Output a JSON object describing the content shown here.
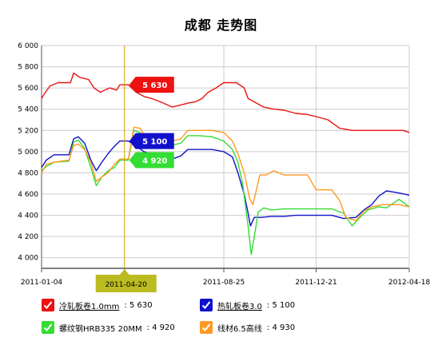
{
  "chart_data": {
    "type": "line",
    "title": "成都 走势图",
    "ylim": [
      3900,
      6000
    ],
    "y_ticks": [
      4000,
      4200,
      4400,
      4600,
      4800,
      5000,
      5200,
      5400,
      5600,
      5800,
      6000
    ],
    "y_tick_labels": [
      "4 000",
      "4 200",
      "4 400",
      "4 600",
      "4 800",
      "5 000",
      "5 200",
      "5 400",
      "5 600",
      "5 800",
      "6 000"
    ],
    "xlim": [
      "2011-01-04",
      "2012-04-18"
    ],
    "x_tick_labels": [
      "2011-01-04",
      "2011-04-20",
      "2011-08-25",
      "2011-12-21",
      "2012-04-18"
    ],
    "cursor_date": "2011-04-20",
    "grid": true,
    "legend_position": "bottom",
    "series": [
      {
        "name": "冷轧板卷1.0mm",
        "color": "#ee1111",
        "current_value": "5 630",
        "points": [
          [
            "2011-01-04",
            5500
          ],
          [
            "2011-01-08",
            5550
          ],
          [
            "2011-01-15",
            5620
          ],
          [
            "2011-01-25",
            5650
          ],
          [
            "2011-02-10",
            5650
          ],
          [
            "2011-02-14",
            5740
          ],
          [
            "2011-02-22",
            5700
          ],
          [
            "2011-03-05",
            5680
          ],
          [
            "2011-03-12",
            5600
          ],
          [
            "2011-03-20",
            5560
          ],
          [
            "2011-04-01",
            5600
          ],
          [
            "2011-04-10",
            5580
          ],
          [
            "2011-04-14",
            5630
          ],
          [
            "2011-04-25",
            5630
          ],
          [
            "2011-05-05",
            5560
          ],
          [
            "2011-05-15",
            5520
          ],
          [
            "2011-05-25",
            5500
          ],
          [
            "2011-06-08",
            5460
          ],
          [
            "2011-06-20",
            5420
          ],
          [
            "2011-07-01",
            5440
          ],
          [
            "2011-07-12",
            5460
          ],
          [
            "2011-07-20",
            5470
          ],
          [
            "2011-07-28",
            5500
          ],
          [
            "2011-08-05",
            5560
          ],
          [
            "2011-08-15",
            5600
          ],
          [
            "2011-08-25",
            5650
          ],
          [
            "2011-09-10",
            5650
          ],
          [
            "2011-09-20",
            5600
          ],
          [
            "2011-09-25",
            5500
          ],
          [
            "2011-10-05",
            5460
          ],
          [
            "2011-10-15",
            5420
          ],
          [
            "2011-10-28",
            5400
          ],
          [
            "2011-11-10",
            5390
          ],
          [
            "2011-11-25",
            5360
          ],
          [
            "2011-12-10",
            5350
          ],
          [
            "2011-12-21",
            5330
          ],
          [
            "2012-01-05",
            5300
          ],
          [
            "2012-01-20",
            5220
          ],
          [
            "2012-02-05",
            5200
          ],
          [
            "2012-03-01",
            5200
          ],
          [
            "2012-04-10",
            5200
          ],
          [
            "2012-04-18",
            5180
          ]
        ]
      },
      {
        "name": "热轧板卷3.0",
        "color": "#1111cc",
        "current_value": "5 100",
        "points": [
          [
            "2011-01-04",
            4850
          ],
          [
            "2011-01-10",
            4920
          ],
          [
            "2011-01-20",
            4970
          ],
          [
            "2011-02-08",
            4970
          ],
          [
            "2011-02-14",
            5120
          ],
          [
            "2011-02-20",
            5140
          ],
          [
            "2011-02-28",
            5080
          ],
          [
            "2011-03-08",
            4920
          ],
          [
            "2011-03-15",
            4820
          ],
          [
            "2011-03-22",
            4900
          ],
          [
            "2011-03-30",
            4980
          ],
          [
            "2011-04-07",
            5050
          ],
          [
            "2011-04-14",
            5100
          ],
          [
            "2011-04-25",
            5100
          ],
          [
            "2011-05-05",
            5050
          ],
          [
            "2011-05-15",
            5000
          ],
          [
            "2011-05-25",
            4980
          ],
          [
            "2011-06-05",
            4930
          ],
          [
            "2011-06-20",
            4930
          ],
          [
            "2011-07-01",
            4960
          ],
          [
            "2011-07-10",
            5020
          ],
          [
            "2011-07-25",
            5020
          ],
          [
            "2011-08-10",
            5020
          ],
          [
            "2011-08-25",
            5000
          ],
          [
            "2011-09-05",
            4950
          ],
          [
            "2011-09-12",
            4800
          ],
          [
            "2011-09-20",
            4600
          ],
          [
            "2011-09-25",
            4420
          ],
          [
            "2011-09-28",
            4300
          ],
          [
            "2011-10-03",
            4380
          ],
          [
            "2011-10-12",
            4380
          ],
          [
            "2011-10-25",
            4390
          ],
          [
            "2011-11-10",
            4390
          ],
          [
            "2011-11-25",
            4400
          ],
          [
            "2011-12-21",
            4400
          ],
          [
            "2012-01-10",
            4400
          ],
          [
            "2012-01-25",
            4370
          ],
          [
            "2012-02-10",
            4380
          ],
          [
            "2012-02-20",
            4450
          ],
          [
            "2012-03-01",
            4500
          ],
          [
            "2012-03-10",
            4580
          ],
          [
            "2012-03-20",
            4630
          ],
          [
            "2012-04-05",
            4610
          ],
          [
            "2012-04-18",
            4590
          ]
        ]
      },
      {
        "name": "螺纹钢HRB335 20MM",
        "color": "#33dd33",
        "current_value": "4 920",
        "points": [
          [
            "2011-01-04",
            4820
          ],
          [
            "2011-01-10",
            4860
          ],
          [
            "2011-01-20",
            4900
          ],
          [
            "2011-02-08",
            4910
          ],
          [
            "2011-02-14",
            5090
          ],
          [
            "2011-02-20",
            5110
          ],
          [
            "2011-02-28",
            5030
          ],
          [
            "2011-03-08",
            4850
          ],
          [
            "2011-03-15",
            4680
          ],
          [
            "2011-03-22",
            4760
          ],
          [
            "2011-03-30",
            4820
          ],
          [
            "2011-04-07",
            4850
          ],
          [
            "2011-04-14",
            4920
          ],
          [
            "2011-04-25",
            4920
          ],
          [
            "2011-05-02",
            5200
          ],
          [
            "2011-05-10",
            5180
          ],
          [
            "2011-05-20",
            5080
          ],
          [
            "2011-06-05",
            5060
          ],
          [
            "2011-06-20",
            5060
          ],
          [
            "2011-07-01",
            5080
          ],
          [
            "2011-07-10",
            5150
          ],
          [
            "2011-07-25",
            5150
          ],
          [
            "2011-08-10",
            5140
          ],
          [
            "2011-08-25",
            5100
          ],
          [
            "2011-09-05",
            5020
          ],
          [
            "2011-09-12",
            4900
          ],
          [
            "2011-09-18",
            4700
          ],
          [
            "2011-09-25",
            4300
          ],
          [
            "2011-09-29",
            4030
          ],
          [
            "2011-10-03",
            4200
          ],
          [
            "2011-10-08",
            4430
          ],
          [
            "2011-10-15",
            4470
          ],
          [
            "2011-10-25",
            4450
          ],
          [
            "2011-11-10",
            4460
          ],
          [
            "2011-11-25",
            4460
          ],
          [
            "2011-12-21",
            4460
          ],
          [
            "2012-01-10",
            4460
          ],
          [
            "2012-01-25",
            4420
          ],
          [
            "2012-02-05",
            4300
          ],
          [
            "2012-02-15",
            4380
          ],
          [
            "2012-02-25",
            4450
          ],
          [
            "2012-03-10",
            4480
          ],
          [
            "2012-03-20",
            4470
          ],
          [
            "2012-04-05",
            4550
          ],
          [
            "2012-04-18",
            4480
          ]
        ]
      },
      {
        "name": "线材6.5高线",
        "color": "#ff9922",
        "current_value": "4 930",
        "points": [
          [
            "2011-01-04",
            4800
          ],
          [
            "2011-01-10",
            4880
          ],
          [
            "2011-01-20",
            4900
          ],
          [
            "2011-02-08",
            4920
          ],
          [
            "2011-02-14",
            5060
          ],
          [
            "2011-02-20",
            5070
          ],
          [
            "2011-02-28",
            5020
          ],
          [
            "2011-03-08",
            4900
          ],
          [
            "2011-03-15",
            4720
          ],
          [
            "2011-03-22",
            4760
          ],
          [
            "2011-03-30",
            4800
          ],
          [
            "2011-04-07",
            4880
          ],
          [
            "2011-04-14",
            4930
          ],
          [
            "2011-04-25",
            4930
          ],
          [
            "2011-05-02",
            5230
          ],
          [
            "2011-05-10",
            5220
          ],
          [
            "2011-05-20",
            5100
          ],
          [
            "2011-06-05",
            5100
          ],
          [
            "2011-06-20",
            5100
          ],
          [
            "2011-07-01",
            5120
          ],
          [
            "2011-07-10",
            5200
          ],
          [
            "2011-07-25",
            5200
          ],
          [
            "2011-08-10",
            5200
          ],
          [
            "2011-08-25",
            5180
          ],
          [
            "2011-09-05",
            5100
          ],
          [
            "2011-09-12",
            4980
          ],
          [
            "2011-09-20",
            4800
          ],
          [
            "2011-09-27",
            4560
          ],
          [
            "2011-10-01",
            4500
          ],
          [
            "2011-10-05",
            4620
          ],
          [
            "2011-10-10",
            4780
          ],
          [
            "2011-10-18",
            4780
          ],
          [
            "2011-10-28",
            4820
          ],
          [
            "2011-11-10",
            4780
          ],
          [
            "2011-11-25",
            4780
          ],
          [
            "2011-12-10",
            4780
          ],
          [
            "2011-12-21",
            4640
          ],
          [
            "2012-01-10",
            4640
          ],
          [
            "2012-01-20",
            4540
          ],
          [
            "2012-01-28",
            4380
          ],
          [
            "2012-02-10",
            4350
          ],
          [
            "2012-02-20",
            4440
          ],
          [
            "2012-03-01",
            4480
          ],
          [
            "2012-03-15",
            4500
          ],
          [
            "2012-04-05",
            4500
          ],
          [
            "2012-04-18",
            4480
          ]
        ]
      }
    ]
  },
  "legend": [
    {
      "name": "冷轧板卷1.0mm",
      "value": "5 630",
      "color": "#ee1111",
      "underline": true
    },
    {
      "name": "热轧板卷3.0",
      "value": "5 100",
      "color": "#1111cc",
      "underline": true
    },
    {
      "name": "螺纹钢HRB335 20MM",
      "value": "4 920",
      "color": "#33dd33",
      "underline": false
    },
    {
      "name": "线材6.5高线",
      "value": "4 930",
      "color": "#ff9922",
      "underline": false
    }
  ],
  "flags": [
    {
      "value": "5 630",
      "color": "#ee1111"
    },
    {
      "value": "5 100",
      "color": "#1111cc"
    },
    {
      "value": "4 920",
      "color": "#33dd33"
    }
  ],
  "colors": {
    "grid": "#cccccc",
    "cursor": "#ddaa00",
    "cursor_label_bg": "#bbbb22",
    "axis": "#555555"
  },
  "check_icon": "check-icon"
}
